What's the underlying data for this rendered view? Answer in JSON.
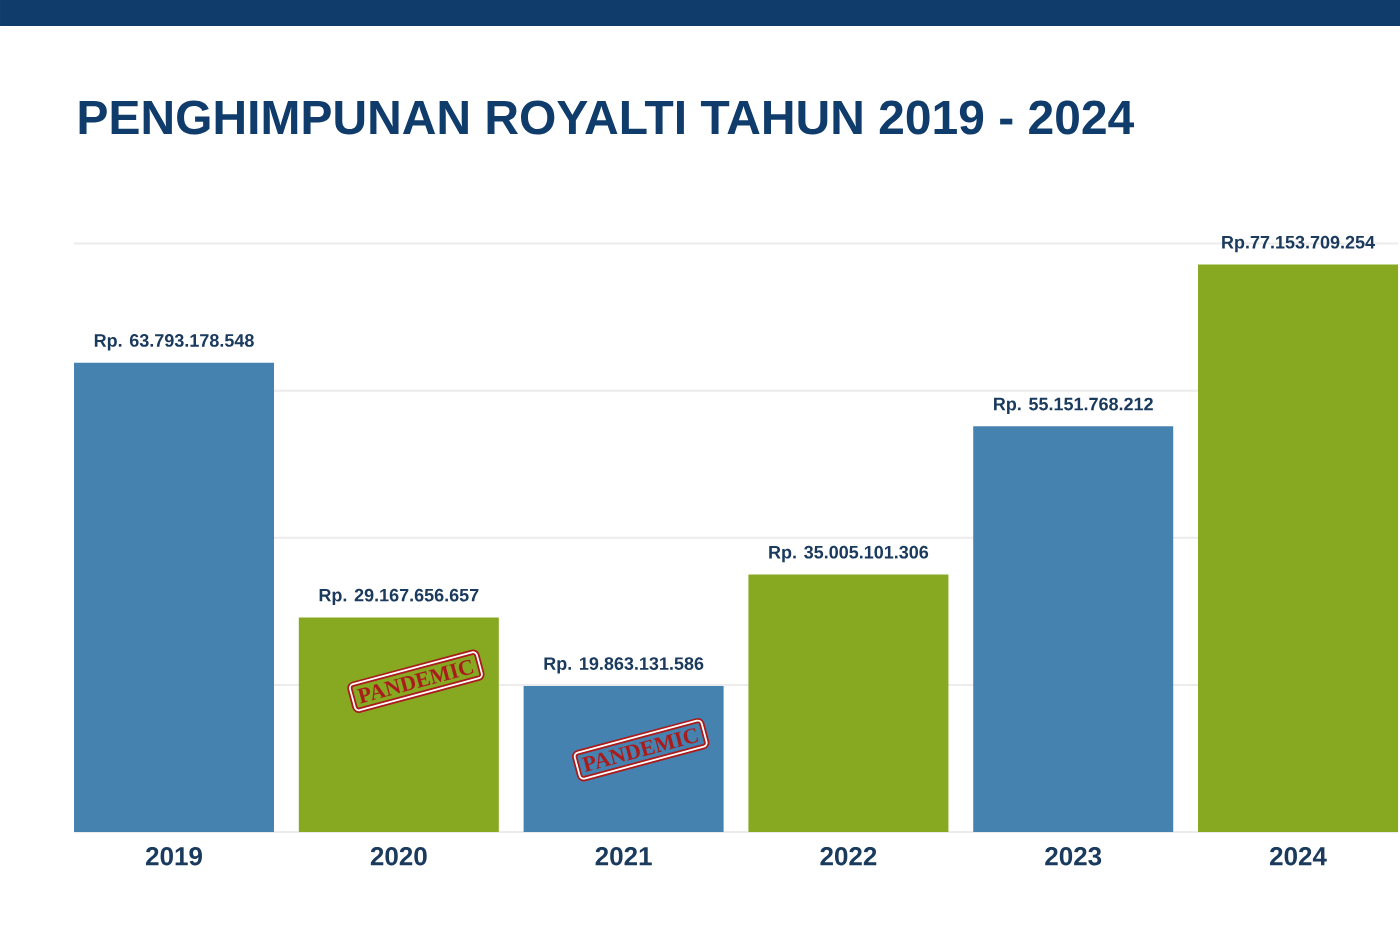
{
  "chart_data": {
    "type": "bar",
    "title": "PENGHIMPUNAN ROYALTI TAHUN 2019 - 2024",
    "categories": [
      "2019",
      "2020",
      "2021",
      "2022",
      "2023",
      "2024"
    ],
    "values": [
      63793178548,
      29167656657,
      19863131586,
      35005101306,
      55151768212,
      77153709254
    ],
    "colors": [
      "#4682b0",
      "#87a922",
      "#4682b0",
      "#87a922",
      "#4682b0",
      "#87a922"
    ],
    "value_labels": [
      "Rp. 63.793.178.548",
      "Rp. 29.167.656.657",
      "Rp. 19.863.131.586",
      "Rp. 35.005.101.306",
      "Rp. 55.151.768.212",
      "Rp.77.153.709.254"
    ],
    "yticks": [
      {
        "value": 0,
        "label": null
      },
      {
        "value": 20000000000,
        "label": null
      },
      {
        "value": 40000000000,
        "label": null
      },
      {
        "value": 60000000000,
        "label": null
      },
      {
        "value": 80000000000,
        "label": null
      }
    ],
    "grid": "y",
    "tick_labels": "x",
    "annotations": [
      {
        "text": "PANDEMIC",
        "x": "2020",
        "y": 29167656657
      },
      {
        "text": "PANDEMIC",
        "x": "2021",
        "y": 19863131586
      }
    ]
  }
}
